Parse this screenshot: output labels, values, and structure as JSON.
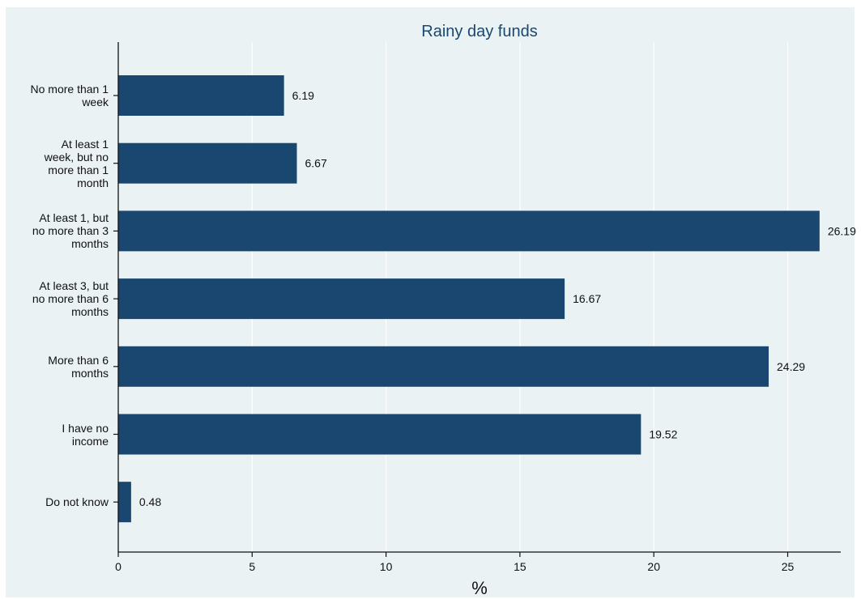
{
  "chart_data": {
    "type": "bar",
    "orientation": "horizontal",
    "title": "Rainy day funds",
    "xlabel": "%",
    "ylabel": "",
    "categories": [
      "No more than 1\nweek",
      "At least 1\nweek, but no\nmore than 1\nmonth",
      "At least 1, but\nno more than 3\nmonths",
      "At least 3, but\nno more than 6\nmonths",
      "More than 6\nmonths",
      "I have no\nincome",
      "Do not know"
    ],
    "values": [
      6.19,
      6.67,
      26.19,
      16.67,
      24.29,
      19.52,
      0.48
    ],
    "value_labels": [
      "6.19",
      "6.67",
      "26.19",
      "16.67",
      "24.29",
      "19.52",
      "0.48"
    ],
    "xlim": [
      0,
      26.8
    ],
    "xticks": [
      0,
      5,
      10,
      15,
      20,
      25
    ],
    "xtick_labels": [
      "0",
      "5",
      "10",
      "15",
      "20",
      "25"
    ],
    "grid": true,
    "bar_color": "#1a476f",
    "grid_color": "#ffffff",
    "background_color": "#eaf2f3"
  }
}
